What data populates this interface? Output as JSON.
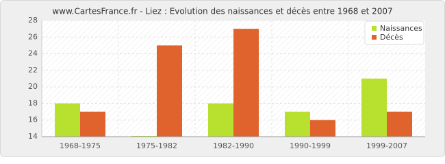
{
  "chart_data": {
    "type": "bar",
    "title": "www.CartesFrance.fr - Liez : Evolution des naissances et décès entre 1968 et 2007",
    "categories": [
      "1968-1975",
      "1975-1982",
      "1982-1990",
      "1990-1999",
      "1999-2007"
    ],
    "series": [
      {
        "name": "Naissances",
        "color": "#b8e02e",
        "values": [
          18,
          14,
          18,
          17,
          21
        ]
      },
      {
        "name": "Décès",
        "color": "#e0632e",
        "values": [
          17,
          25,
          27,
          16,
          17
        ]
      }
    ],
    "ylim": [
      14,
      28
    ],
    "yticks": [
      14,
      16,
      18,
      20,
      22,
      24,
      26,
      28
    ],
    "grid": true,
    "legend": "top-right"
  }
}
